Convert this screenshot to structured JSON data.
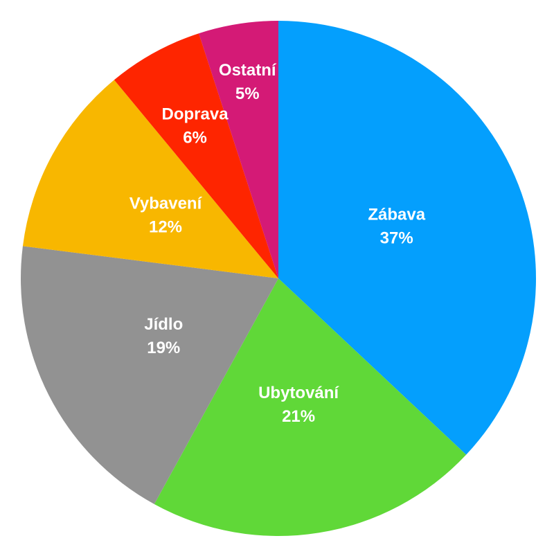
{
  "chart_data": {
    "type": "pie",
    "categories": [
      "Zábava",
      "Ubytování",
      "Jídlo",
      "Vybavení",
      "Doprava",
      "Ostatní"
    ],
    "values": [
      37,
      21,
      19,
      12,
      6,
      5
    ],
    "value_labels": [
      "37%",
      "21%",
      "19%",
      "12%",
      "6%",
      "5%"
    ],
    "colors": [
      "#049ffd",
      "#60d838",
      "#929292",
      "#f8b700",
      "#fe2500",
      "#d41a76"
    ]
  }
}
